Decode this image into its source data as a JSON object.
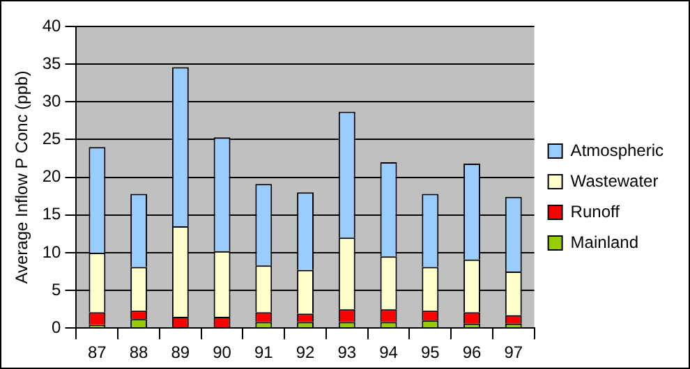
{
  "chart_data": {
    "type": "bar",
    "stacked": true,
    "ylabel": "Average Inflow P Conc (ppb)",
    "categories": [
      "87",
      "88",
      "89",
      "90",
      "91",
      "92",
      "93",
      "94",
      "95",
      "96",
      "97"
    ],
    "series": [
      {
        "name": "Mainland",
        "color": "#99cc00",
        "values": [
          0.4,
          1.2,
          null,
          null,
          0.8,
          0.8,
          0.8,
          0.8,
          1.0,
          0.6,
          0.6
        ]
      },
      {
        "name": "Runoff",
        "color": "#ff0000",
        "values": [
          1.7,
          1.1,
          1.5,
          1.5,
          1.3,
          1.1,
          1.7,
          1.7,
          1.3,
          1.5,
          1.1
        ]
      },
      {
        "name": "Wastewater",
        "color": "#ffffcc",
        "values": [
          7.9,
          5.8,
          12.0,
          8.7,
          6.2,
          5.8,
          9.5,
          7.0,
          5.8,
          7.0,
          5.8
        ]
      },
      {
        "name": "Atmospheric",
        "color": "#99ccff",
        "values": [
          14.0,
          9.7,
          21.1,
          15.1,
          10.8,
          10.3,
          16.7,
          12.5,
          9.7,
          12.7,
          9.9
        ]
      }
    ],
    "ylim": [
      0,
      40
    ],
    "yticks": [
      0,
      5,
      10,
      15,
      20,
      25,
      30,
      35,
      40
    ],
    "grid": "y",
    "legend": "right"
  }
}
